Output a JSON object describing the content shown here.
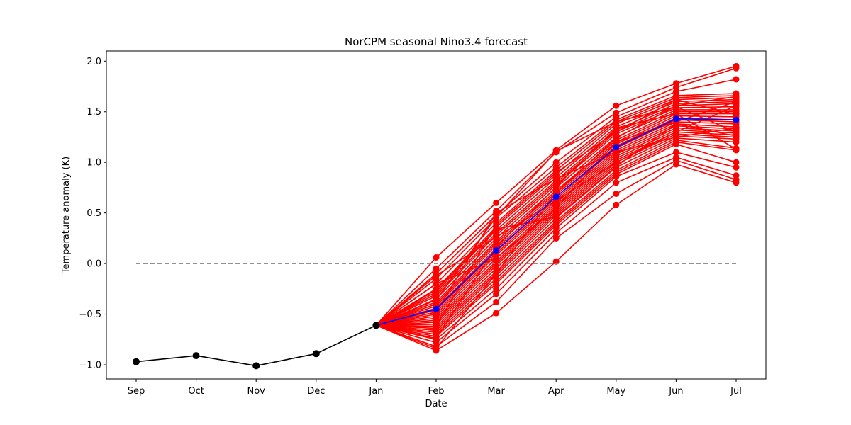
{
  "chart_data": {
    "type": "line",
    "title": "NorCPM seasonal Nino3.4 forecast",
    "xlabel": "Date",
    "ylabel": "Temperature anomaly (K)",
    "categories": [
      "Sep",
      "Oct",
      "Nov",
      "Dec",
      "Jan",
      "Feb",
      "Mar",
      "Apr",
      "May",
      "Jun",
      "Jul"
    ],
    "yticks": [
      "−1.0",
      "−0.5",
      "0.0",
      "0.5",
      "1.0",
      "1.5",
      "2.0"
    ],
    "ylim": [
      -1.14,
      2.1
    ],
    "grid": false,
    "colors": {
      "observed": "#000000",
      "ensemble": "#ff0000",
      "mean": "#0000ff",
      "zero_line": "#808080"
    },
    "zero_line": {
      "y": 0.0,
      "x_start": "Sep",
      "x_end": "Jul",
      "style": "dashed"
    },
    "observed": [
      -0.97,
      -0.91,
      -1.01,
      -0.89,
      -0.61
    ],
    "ensemble_mean": {
      "x_start": "Jan",
      "values": [
        -0.61,
        -0.45,
        0.13,
        0.66,
        1.15,
        1.43,
        1.42
      ]
    },
    "ensemble": {
      "x_start": "Jan",
      "members": [
        [
          -0.61,
          0.06,
          0.6,
          1.12,
          1.56,
          1.78,
          1.95
        ],
        [
          -0.61,
          -0.05,
          0.52,
          1.1,
          1.49,
          1.74,
          1.93
        ],
        [
          -0.61,
          -0.1,
          0.48,
          1.0,
          1.45,
          1.7,
          1.82
        ],
        [
          -0.61,
          -0.15,
          0.45,
          0.95,
          1.42,
          1.66,
          1.68
        ],
        [
          -0.61,
          -0.2,
          0.4,
          0.92,
          1.4,
          1.64,
          1.66
        ],
        [
          -0.61,
          -0.25,
          0.36,
          0.88,
          1.38,
          1.62,
          1.64
        ],
        [
          -0.61,
          -0.28,
          0.33,
          0.85,
          1.35,
          1.6,
          1.62
        ],
        [
          -0.61,
          -0.3,
          0.3,
          0.82,
          1.32,
          1.58,
          1.6
        ],
        [
          -0.61,
          -0.32,
          0.28,
          0.8,
          1.3,
          1.56,
          1.58
        ],
        [
          -0.61,
          -0.35,
          0.25,
          0.78,
          1.28,
          1.54,
          1.55
        ],
        [
          -0.61,
          -0.38,
          0.22,
          0.75,
          1.25,
          1.52,
          1.52
        ],
        [
          -0.61,
          -0.4,
          0.2,
          0.72,
          1.22,
          1.5,
          1.5
        ],
        [
          -0.61,
          -0.42,
          0.18,
          0.7,
          1.2,
          1.48,
          1.48
        ],
        [
          -0.61,
          -0.44,
          0.15,
          0.68,
          1.18,
          1.46,
          1.45
        ],
        [
          -0.61,
          -0.46,
          0.12,
          0.66,
          1.16,
          1.44,
          1.42
        ],
        [
          -0.61,
          -0.48,
          0.1,
          0.64,
          1.14,
          1.42,
          1.4
        ],
        [
          -0.61,
          -0.5,
          0.08,
          0.62,
          1.12,
          1.4,
          1.38
        ],
        [
          -0.61,
          -0.52,
          0.05,
          0.6,
          1.1,
          1.38,
          1.35
        ],
        [
          -0.61,
          -0.54,
          0.02,
          0.58,
          1.08,
          1.36,
          1.33
        ],
        [
          -0.61,
          -0.56,
          0.0,
          0.56,
          1.06,
          1.34,
          1.31
        ],
        [
          -0.61,
          -0.58,
          -0.02,
          0.54,
          1.04,
          1.32,
          1.29
        ],
        [
          -0.61,
          -0.6,
          -0.05,
          0.52,
          1.02,
          1.3,
          1.27
        ],
        [
          -0.61,
          -0.62,
          -0.08,
          0.5,
          1.0,
          1.28,
          1.25
        ],
        [
          -0.61,
          -0.64,
          -0.1,
          0.48,
          0.98,
          1.26,
          1.23
        ],
        [
          -0.61,
          -0.66,
          -0.12,
          0.45,
          0.95,
          1.24,
          1.2
        ],
        [
          -0.61,
          -0.68,
          -0.15,
          0.42,
          0.92,
          1.22,
          1.14
        ],
        [
          -0.61,
          -0.7,
          -0.18,
          0.4,
          0.9,
          1.2,
          1.12
        ],
        [
          -0.61,
          -0.72,
          -0.2,
          0.38,
          0.88,
          1.18,
          1.0
        ],
        [
          -0.61,
          -0.75,
          -0.25,
          0.35,
          0.86,
          1.1,
          0.95
        ],
        [
          -0.61,
          -0.78,
          -0.3,
          0.3,
          0.8,
          1.05,
          0.87
        ],
        [
          -0.61,
          -0.82,
          -0.38,
          0.25,
          0.69,
          1.02,
          0.83
        ],
        [
          -0.61,
          -0.86,
          -0.49,
          0.02,
          0.58,
          0.98,
          0.8
        ],
        [
          -0.61,
          -0.36,
          0.46,
          1.11,
          1.4,
          1.55,
          1.3
        ],
        [
          -0.61,
          -0.62,
          0.38,
          0.9,
          1.3,
          1.62,
          1.47
        ],
        [
          -0.61,
          -0.2,
          0.05,
          0.55,
          1.2,
          1.4,
          1.6
        ],
        [
          -0.61,
          -0.74,
          0.16,
          0.76,
          1.34,
          1.48,
          1.13
        ],
        [
          -0.61,
          -0.12,
          0.26,
          0.62,
          1.0,
          1.3,
          1.56
        ],
        [
          -0.61,
          -0.84,
          -0.1,
          0.7,
          1.24,
          1.56,
          1.65
        ],
        [
          -0.61,
          -0.26,
          0.34,
          0.46,
          0.96,
          1.38,
          1.26
        ],
        [
          -0.61,
          -0.48,
          0.5,
          0.84,
          1.1,
          1.25,
          1.34
        ]
      ]
    }
  }
}
